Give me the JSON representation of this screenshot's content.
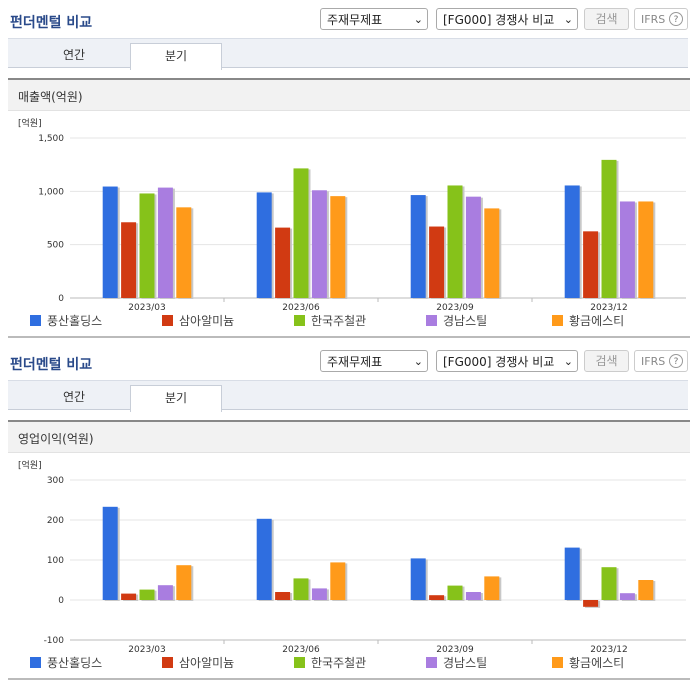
{
  "colors": {
    "series": [
      "#2f6ee0",
      "#d13a12",
      "#86c21a",
      "#a97de0",
      "#ff9a1a"
    ],
    "grid": "#e4e4e4",
    "header_title": "#2a4a8a"
  },
  "panels": [
    {
      "title": "펀더멘털 비교",
      "select_statement": "주재무제표",
      "select_compare": "[FG000] 경쟁사 비교",
      "search_label": "검색",
      "ifrs_label": "IFRS",
      "help_icon_glyph": "?",
      "tabs": [
        {
          "label": "연간",
          "active": false
        },
        {
          "label": "분기",
          "active": true
        }
      ],
      "chart_header": "매출액(억원)",
      "chart_data": {
        "type": "bar",
        "unit_label": "[억원]",
        "categories": [
          "2023/03",
          "2023/06",
          "2023/09",
          "2023/12"
        ],
        "series": [
          {
            "name": "풍산홀딩스",
            "values": [
              1045,
              990,
              965,
              1055
            ]
          },
          {
            "name": "삼아알미늄",
            "values": [
              710,
              660,
              670,
              625
            ]
          },
          {
            "name": "한국주철관",
            "values": [
              980,
              1215,
              1055,
              1295
            ]
          },
          {
            "name": "경남스틸",
            "values": [
              1035,
              1010,
              950,
              905
            ]
          },
          {
            "name": "황금에스티",
            "values": [
              850,
              955,
              840,
              905
            ]
          }
        ],
        "ylim": [
          0,
          1500
        ],
        "yticks": [
          0,
          500,
          1000,
          1500
        ],
        "ytick_labels": [
          "0",
          "500",
          "1,000",
          "1,500"
        ],
        "legend_position": "bottom"
      }
    },
    {
      "title": "펀더멘털 비교",
      "select_statement": "주재무제표",
      "select_compare": "[FG000] 경쟁사 비교",
      "search_label": "검색",
      "ifrs_label": "IFRS",
      "help_icon_glyph": "?",
      "tabs": [
        {
          "label": "연간",
          "active": false
        },
        {
          "label": "분기",
          "active": true
        }
      ],
      "chart_header": "영업이익(억원)",
      "chart_data": {
        "type": "bar",
        "unit_label": "[억원]",
        "categories": [
          "2023/03",
          "2023/06",
          "2023/09",
          "2023/12"
        ],
        "series": [
          {
            "name": "풍산홀딩스",
            "values": [
              233,
              203,
              104,
              131
            ]
          },
          {
            "name": "삼아알미늄",
            "values": [
              16,
              20,
              12,
              -17
            ]
          },
          {
            "name": "한국주철관",
            "values": [
              26,
              54,
              36,
              82
            ]
          },
          {
            "name": "경남스틸",
            "values": [
              37,
              29,
              20,
              17
            ]
          },
          {
            "name": "황금에스티",
            "values": [
              87,
              94,
              59,
              50
            ]
          }
        ],
        "ylim": [
          -100,
          300
        ],
        "yticks": [
          -100,
          0,
          100,
          200,
          300
        ],
        "ytick_labels": [
          "-100",
          "0",
          "100",
          "200",
          "300"
        ],
        "legend_position": "bottom"
      }
    }
  ]
}
